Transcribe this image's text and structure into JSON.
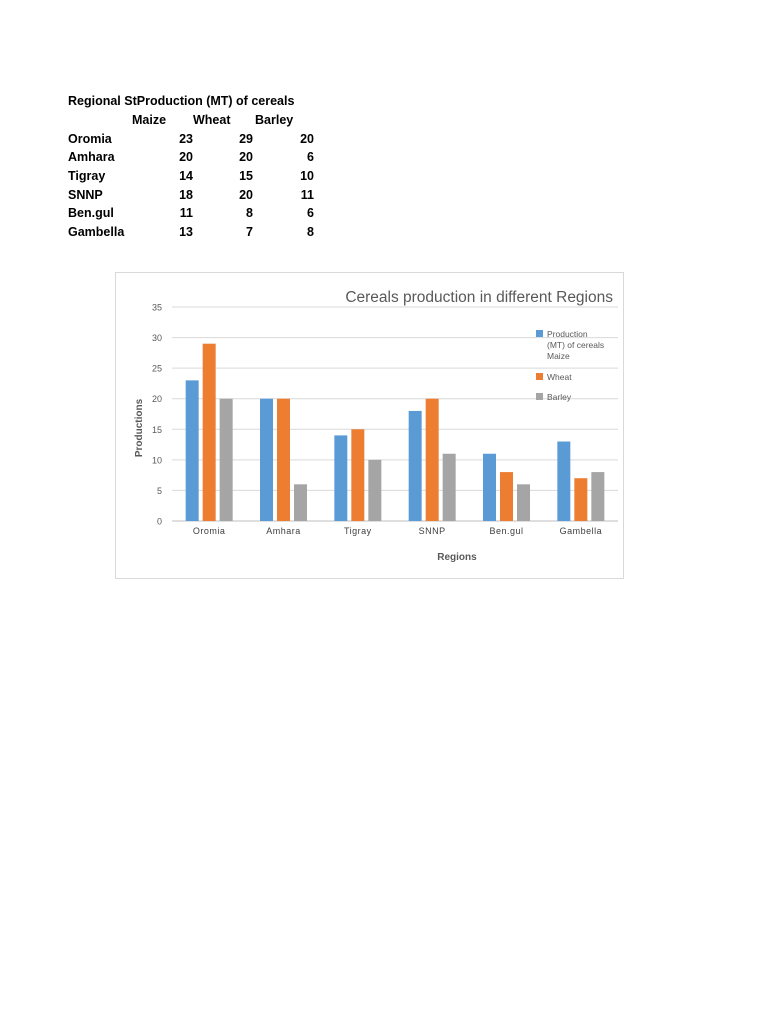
{
  "table": {
    "title": "Regional StProduction (MT) of cereals",
    "headers": [
      "Maize",
      "Wheat",
      "Barley"
    ],
    "rows": [
      {
        "label": "Oromia",
        "values": [
          "23",
          "29",
          "20"
        ]
      },
      {
        "label": "Amhara",
        "values": [
          "20",
          "20",
          "6"
        ]
      },
      {
        "label": "Tigray",
        "values": [
          "14",
          "15",
          "10"
        ]
      },
      {
        "label": "SNNP",
        "values": [
          "18",
          "20",
          "11"
        ]
      },
      {
        "label": "Ben.gul",
        "values": [
          "11",
          "8",
          "6"
        ]
      },
      {
        "label": "Gambella",
        "values": [
          "13",
          "7",
          "8"
        ]
      }
    ]
  },
  "chart_data": {
    "type": "bar",
    "title": "Cereals production in different Regions",
    "xlabel": "Regions",
    "ylabel": "Productions",
    "categories": [
      "Oromia",
      "Amhara",
      "Tigray",
      "SNNP",
      "Ben.gul",
      "Gambella"
    ],
    "series": [
      {
        "name": "Production (MT) of cereals Maize",
        "legend_lines": [
          "Production",
          "(MT) of cereals",
          "Maize"
        ],
        "color": "#5b9bd5",
        "values": [
          23,
          20,
          14,
          18,
          11,
          13
        ]
      },
      {
        "name": "Wheat",
        "legend_lines": [
          "Wheat"
        ],
        "color": "#ed7d31",
        "values": [
          29,
          20,
          15,
          20,
          8,
          7
        ]
      },
      {
        "name": "Barley",
        "legend_lines": [
          "Barley"
        ],
        "color": "#a5a5a5",
        "values": [
          20,
          6,
          10,
          11,
          6,
          8
        ]
      }
    ],
    "ylim": [
      0,
      35
    ],
    "yticks": [
      0,
      5,
      10,
      15,
      20,
      25,
      30,
      35
    ],
    "grid": true,
    "legend": "right"
  }
}
